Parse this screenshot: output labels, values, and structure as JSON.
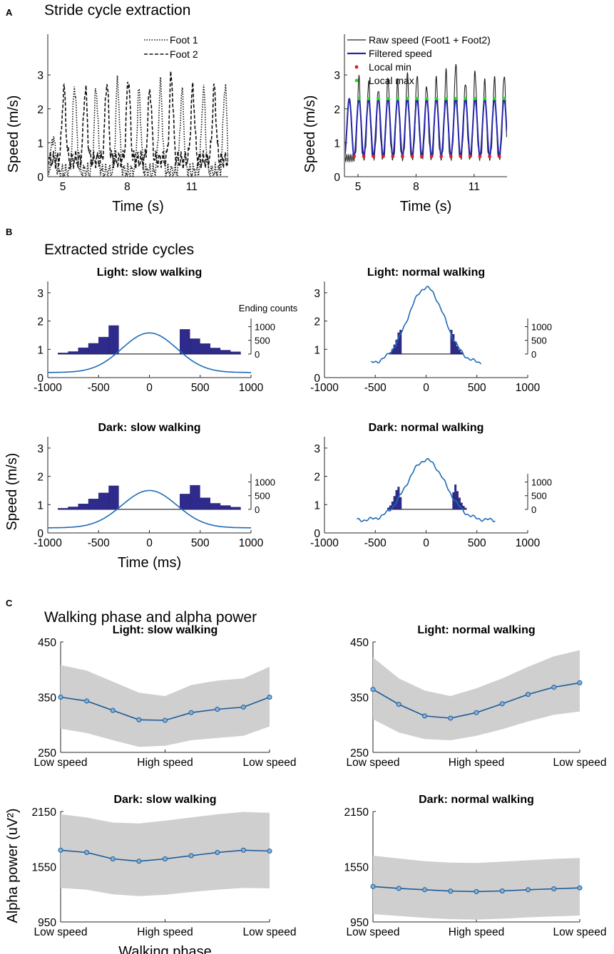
{
  "figure": {
    "panel_a": {
      "label": "A",
      "title": "Stride cycle extraction"
    },
    "panel_b": {
      "label": "B",
      "title": "Extracted stride cycles"
    },
    "panel_c": {
      "label": "C",
      "title": "Walking phase and alpha power"
    }
  },
  "colors": {
    "blue": "#1f5fa8",
    "darkblue": "#2a2a8a",
    "bar": "#2e2b8c",
    "red": "#e41a1c",
    "green": "#22dd22",
    "gray": "#cfcfcf"
  },
  "chart_data": [
    {
      "id": "a_left",
      "type": "line",
      "title": "",
      "xlabel": "Time (s)",
      "ylabel": "Speed (m/s)",
      "xlim": [
        4.3,
        12.7
      ],
      "ylim": [
        0,
        4.2
      ],
      "xticks": [
        "5",
        "8",
        "11"
      ],
      "xtick_values": [
        5,
        8,
        11
      ],
      "yticks": [
        "0",
        "1",
        "2",
        "3"
      ],
      "ytick_values": [
        0,
        1,
        2,
        3
      ],
      "series": [
        {
          "name": "Foot 1",
          "style": "dotted",
          "peaks_t": [
            4.55,
            5.55,
            6.55,
            7.55,
            8.55,
            9.55,
            10.55,
            11.55,
            12.55
          ],
          "peaks_v": [
            1.2,
            2.7,
            2.6,
            2.8,
            2.5,
            2.7,
            2.5,
            2.6,
            2.7
          ]
        },
        {
          "name": "Foot 2",
          "style": "dashed",
          "peaks_t": [
            5.05,
            6.05,
            7.05,
            8.05,
            9.05,
            10.05,
            11.05,
            12.05
          ],
          "peaks_v": [
            2.6,
            2.6,
            2.8,
            2.9,
            2.6,
            3.0,
            2.6,
            2.6
          ]
        }
      ]
    },
    {
      "id": "a_right",
      "type": "line",
      "title": "",
      "xlabel": "Time (s)",
      "ylabel": "Speed (m/s)",
      "xlim": [
        4.3,
        12.7
      ],
      "ylim": [
        0,
        4.2
      ],
      "xticks": [
        "5",
        "8",
        "11"
      ],
      "xtick_values": [
        5,
        8,
        11
      ],
      "yticks": [
        "0",
        "1",
        "2",
        "3"
      ],
      "ytick_values": [
        0,
        1,
        2,
        3
      ],
      "series": [
        {
          "name": "Raw speed (Foot1 + Foot2)",
          "peaks_t": [
            5.05,
            5.55,
            6.05,
            6.55,
            7.05,
            7.55,
            8.05,
            8.55,
            9.05,
            9.55,
            10.05,
            10.55,
            11.05,
            11.55,
            12.05,
            12.55
          ],
          "peaks_v": [
            2.9,
            2.8,
            2.6,
            2.9,
            2.8,
            3.0,
            3.0,
            2.7,
            2.9,
            3.1,
            3.3,
            2.8,
            3.1,
            2.8,
            2.9,
            3.0
          ]
        },
        {
          "name": "Filtered speed",
          "min": 0.6,
          "max": 2.3
        },
        {
          "name": "Local min",
          "value": 0.6
        },
        {
          "name": "Local max",
          "value": 2.3
        }
      ]
    },
    {
      "id": "b_light_slow",
      "type": "line+bar",
      "title": "Light: slow walking",
      "xlim": [
        -1000,
        1000
      ],
      "ylim": [
        0,
        3.4
      ],
      "xticks": [
        "-1000",
        "-500",
        "0",
        "500",
        "1000"
      ],
      "xtick_values": [
        -1000,
        -500,
        0,
        500,
        1000
      ],
      "yticks": [
        "0",
        "1",
        "2",
        "3"
      ],
      "ytick_values": [
        0,
        1,
        2,
        3
      ],
      "right_axis": {
        "label": "Ending counts",
        "ticks": [
          "0",
          "500",
          "1000"
        ],
        "tick_values": [
          0,
          500,
          1000
        ],
        "max": 1300
      },
      "speed_peak": 1.58,
      "speed_base": 0.18,
      "sigma_ms": 270,
      "x_span": [
        -1000,
        1000
      ],
      "bins_left": {
        "edges": [
          -900,
          -800,
          -700,
          -600,
          -500,
          -400,
          -300
        ],
        "counts": [
          40,
          90,
          230,
          390,
          620,
          1040,
          0
        ]
      },
      "bins_right": {
        "edges": [
          300,
          400,
          500,
          600,
          700,
          800,
          900
        ],
        "counts": [
          900,
          560,
          380,
          220,
          140,
          80,
          40
        ]
      }
    },
    {
      "id": "b_light_normal",
      "type": "line+bar",
      "title": "Light: normal walking",
      "xlim": [
        -1000,
        1000
      ],
      "ylim": [
        0,
        3.4
      ],
      "xticks": [
        "-1000",
        "-500",
        "0",
        "500",
        "1000"
      ],
      "xtick_values": [
        -1000,
        -500,
        0,
        500,
        1000
      ],
      "yticks": [
        "0",
        "1",
        "2",
        "3"
      ],
      "ytick_values": [
        0,
        1,
        2,
        3
      ],
      "right_axis": {
        "label": "",
        "ticks": [
          "0",
          "500",
          "1000"
        ],
        "tick_values": [
          0,
          500,
          1000
        ],
        "max": 1300
      },
      "speed_peak": 3.18,
      "speed_base": 0.5,
      "sigma_ms": 180,
      "x_span": [
        -540,
        540
      ],
      "bins_left": {
        "edges": [
          -360,
          -340,
          -320,
          -300,
          -280,
          -260,
          -240
        ],
        "counts": [
          60,
          180,
          340,
          520,
          780,
          880,
          0
        ]
      },
      "bins_right": {
        "edges": [
          240,
          260,
          280,
          300,
          320,
          340,
          360
        ],
        "counts": [
          880,
          720,
          460,
          280,
          150,
          60,
          0
        ]
      }
    },
    {
      "id": "b_dark_slow",
      "type": "line+bar",
      "title": "Dark: slow walking",
      "xlabel": "Time (ms)",
      "ylabel": "Speed (m/s)",
      "xlim": [
        -1000,
        1000
      ],
      "ylim": [
        0,
        3.4
      ],
      "xticks": [
        "-1000",
        "-500",
        "0",
        "500",
        "1000"
      ],
      "xtick_values": [
        -1000,
        -500,
        0,
        500,
        1000
      ],
      "yticks": [
        "0",
        "1",
        "2",
        "3"
      ],
      "ytick_values": [
        0,
        1,
        2,
        3
      ],
      "right_axis": {
        "label": "",
        "ticks": [
          "0",
          "500",
          "1000"
        ],
        "tick_values": [
          0,
          500,
          1000
        ],
        "max": 1300
      },
      "speed_peak": 1.5,
      "speed_base": 0.18,
      "sigma_ms": 270,
      "x_span": [
        -1000,
        1000
      ],
      "bins_left": {
        "edges": [
          -900,
          -800,
          -700,
          -600,
          -500,
          -400,
          -300
        ],
        "counts": [
          40,
          90,
          200,
          380,
          600,
          860,
          0
        ]
      },
      "bins_right": {
        "edges": [
          300,
          400,
          500,
          600,
          700,
          800,
          900
        ],
        "counts": [
          560,
          880,
          420,
          220,
          140,
          80,
          40
        ]
      }
    },
    {
      "id": "b_dark_normal",
      "type": "line+bar",
      "title": "Dark: normal walking",
      "xlim": [
        -1000,
        1000
      ],
      "ylim": [
        0,
        3.4
      ],
      "xticks": [
        "-1000",
        "-500",
        "0",
        "500",
        "1000"
      ],
      "xtick_values": [
        -1000,
        -500,
        0,
        500,
        1000
      ],
      "yticks": [
        "0",
        "1",
        "2",
        "3"
      ],
      "ytick_values": [
        0,
        1,
        2,
        3
      ],
      "right_axis": {
        "label": "",
        "ticks": [
          "0",
          "500",
          "1000"
        ],
        "tick_values": [
          0,
          500,
          1000
        ],
        "max": 1300
      },
      "speed_peak": 2.58,
      "speed_base": 0.45,
      "sigma_ms": 190,
      "x_span": [
        -680,
        680
      ],
      "bins_left": {
        "edges": [
          -380,
          -360,
          -340,
          -320,
          -300,
          -280,
          -260,
          -240
        ],
        "counts": [
          60,
          140,
          280,
          480,
          700,
          820,
          440,
          0
        ]
      },
      "bins_right": {
        "edges": [
          260,
          280,
          300,
          320,
          340,
          360,
          380,
          400
        ],
        "counts": [
          620,
          900,
          660,
          420,
          240,
          120,
          50,
          0
        ]
      }
    },
    {
      "id": "c_light_slow",
      "type": "line",
      "title": "Light: slow walking",
      "xlim": [
        1,
        9
      ],
      "ylim": [
        250,
        450
      ],
      "xticks": [
        "Low speed",
        "High speed",
        "Low speed"
      ],
      "xtick_values": [
        1,
        5,
        9
      ],
      "yticks": [
        "250",
        "350",
        "450"
      ],
      "ytick_values": [
        250,
        350,
        450
      ],
      "values": [
        350,
        343,
        326,
        309,
        308,
        322,
        328,
        332,
        350
      ],
      "upper": [
        408,
        398,
        378,
        358,
        352,
        372,
        380,
        384,
        405
      ],
      "lower": [
        293,
        285,
        272,
        260,
        262,
        272,
        276,
        280,
        297
      ]
    },
    {
      "id": "c_light_normal",
      "type": "line",
      "title": "Light: normal walking",
      "xlim": [
        1,
        9
      ],
      "ylim": [
        250,
        450
      ],
      "xticks": [
        "Low speed",
        "High speed",
        "Low speed"
      ],
      "xtick_values": [
        1,
        5,
        9
      ],
      "yticks": [
        "250",
        "350",
        "450"
      ],
      "ytick_values": [
        250,
        350,
        450
      ],
      "values": [
        364,
        337,
        316,
        312,
        322,
        338,
        355,
        368,
        376
      ],
      "upper": [
        422,
        384,
        362,
        352,
        366,
        384,
        405,
        424,
        435
      ],
      "lower": [
        310,
        286,
        274,
        272,
        280,
        292,
        306,
        318,
        324
      ]
    },
    {
      "id": "c_dark_slow",
      "type": "line",
      "title": "Dark: slow walking",
      "xlabel": "Walking phase",
      "ylabel": "Alpha power (uV²)",
      "xlim": [
        1,
        9
      ],
      "ylim": [
        950,
        2150
      ],
      "xticks": [
        "Low speed",
        "High speed",
        "Low speed"
      ],
      "xtick_values": [
        1,
        5,
        9
      ],
      "yticks": [
        "950",
        "1550",
        "2150"
      ],
      "ytick_values": [
        950,
        1550,
        2150
      ],
      "values": [
        1730,
        1705,
        1635,
        1610,
        1635,
        1670,
        1705,
        1730,
        1720
      ],
      "upper": [
        2120,
        2085,
        2030,
        2020,
        2050,
        2085,
        2120,
        2145,
        2135
      ],
      "lower": [
        1320,
        1300,
        1250,
        1230,
        1245,
        1275,
        1300,
        1320,
        1315
      ]
    },
    {
      "id": "c_dark_normal",
      "type": "line",
      "title": "Dark: normal walking",
      "xlim": [
        1,
        9
      ],
      "ylim": [
        950,
        2150
      ],
      "xticks": [
        "Low speed",
        "High speed",
        "Low speed"
      ],
      "xtick_values": [
        1,
        5,
        9
      ],
      "yticks": [
        "950",
        "1550",
        "2150"
      ],
      "ytick_values": [
        950,
        1550,
        2150
      ],
      "values": [
        1335,
        1315,
        1300,
        1285,
        1280,
        1287,
        1300,
        1310,
        1320
      ],
      "upper": [
        1670,
        1640,
        1610,
        1595,
        1590,
        1605,
        1620,
        1635,
        1645
      ],
      "lower": [
        1035,
        1015,
        995,
        980,
        975,
        985,
        1000,
        1010,
        1020
      ]
    }
  ]
}
